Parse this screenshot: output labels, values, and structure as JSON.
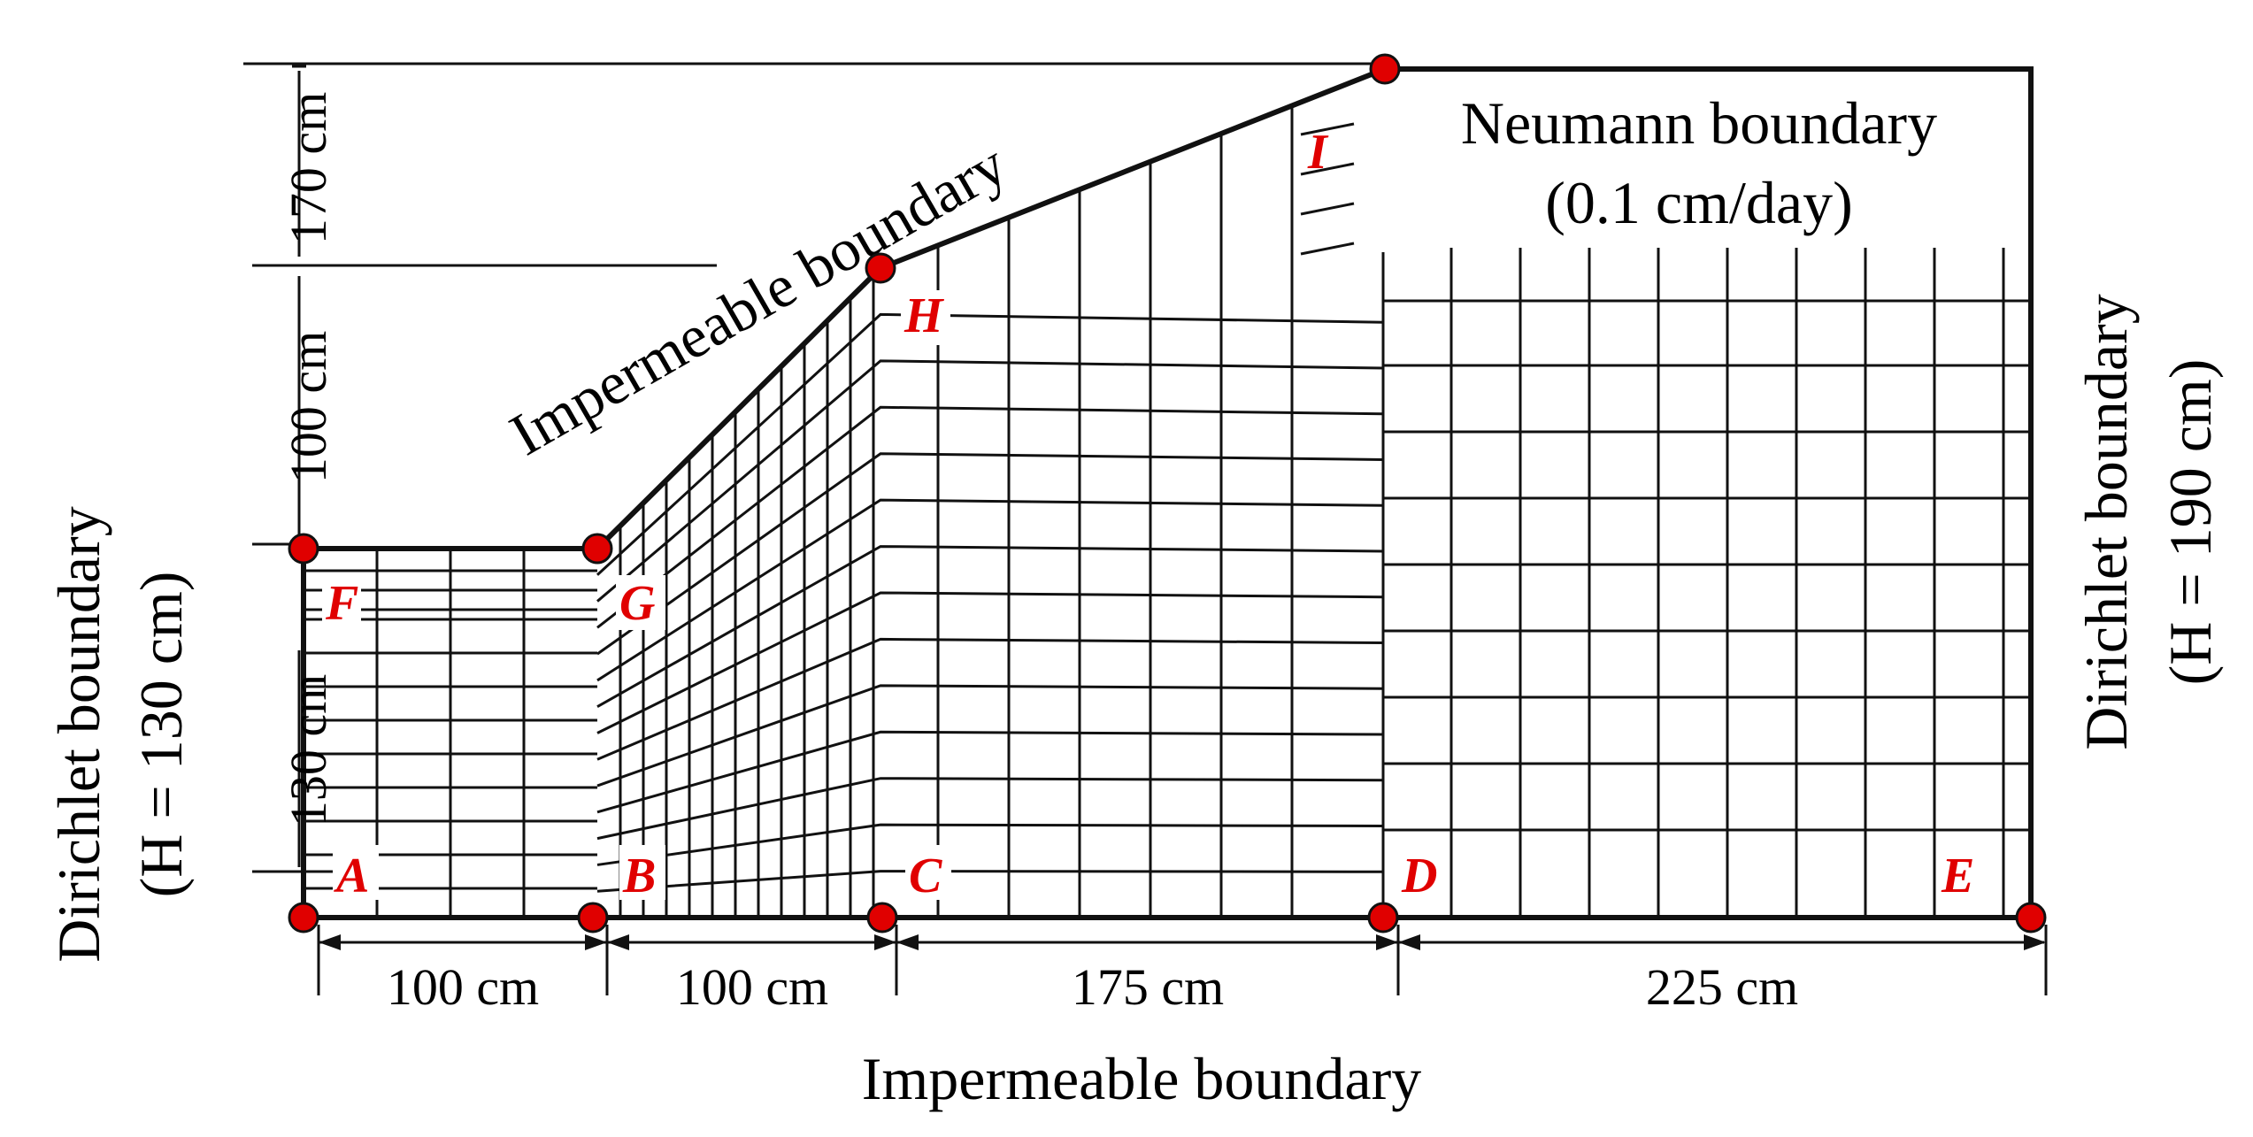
{
  "figure": {
    "boundaries": {
      "left": {
        "line1": "Dirichlet boundary",
        "line2": "(H = 130 cm)"
      },
      "right": {
        "line1": "Dirichlet boundary",
        "line2": "(H = 190 cm)"
      },
      "bottom": "Impermeable boundary",
      "slope": "Impermeable boundary",
      "top": {
        "line1": "Neumann boundary",
        "line2": "(0.1 cm/day)"
      }
    },
    "heights": {
      "upper": "170 cm",
      "middle": "100 cm",
      "lower": "130 cm"
    },
    "widths": [
      "100 cm",
      "100 cm",
      "175 cm",
      "225 cm"
    ],
    "points": [
      "A",
      "B",
      "C",
      "D",
      "E",
      "F",
      "G",
      "H",
      "I"
    ],
    "accent_color": "#e00000"
  }
}
